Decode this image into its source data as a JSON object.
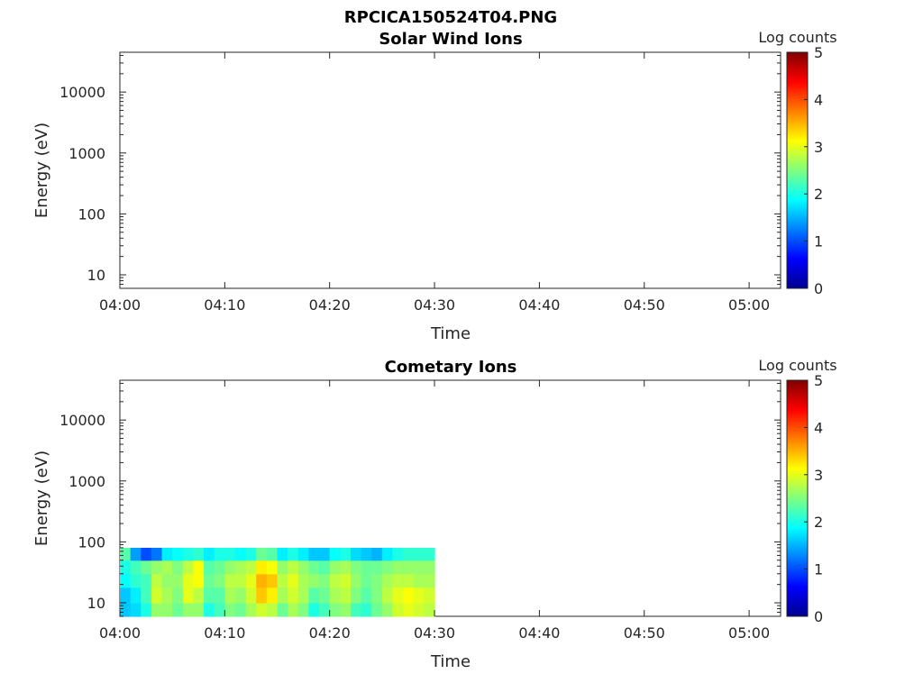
{
  "figure": {
    "title": "RPCICA150524T04.PNG"
  },
  "chart_data": [
    {
      "type": "heatmap",
      "title": "Solar Wind Ions",
      "xlabel": "Time",
      "ylabel": "Energy (eV)",
      "xticks": [
        "04:00",
        "04:10",
        "04:20",
        "04:30",
        "04:40",
        "04:50",
        "05:00"
      ],
      "xlim": [
        "04:00",
        "05:03"
      ],
      "yscale": "log",
      "yticks": [
        10,
        100,
        1000,
        10000
      ],
      "yticklabels": [
        "10",
        "100",
        "1000",
        "10000"
      ],
      "ylim": [
        6,
        45000
      ],
      "colorbar": {
        "label": "Log counts",
        "range": [
          0,
          5
        ],
        "ticks": [
          "0",
          "1",
          "2",
          "3",
          "4",
          "5"
        ],
        "colormap": "jet"
      },
      "data": []
    },
    {
      "type": "heatmap",
      "title": "Cometary Ions",
      "xlabel": "Time",
      "ylabel": "Energy (eV)",
      "xticks": [
        "04:00",
        "04:10",
        "04:20",
        "04:30",
        "04:40",
        "04:50",
        "05:00"
      ],
      "xlim": [
        "04:00",
        "05:03"
      ],
      "yscale": "log",
      "yticks": [
        10,
        100,
        1000,
        10000
      ],
      "yticklabels": [
        "10",
        "100",
        "1000",
        "10000"
      ],
      "ylim": [
        6,
        45000
      ],
      "colorbar": {
        "label": "Log counts",
        "range": [
          0,
          5
        ],
        "ticks": [
          "0",
          "1",
          "2",
          "3",
          "4",
          "5"
        ],
        "colormap": "jet"
      },
      "energy_bins": [
        6,
        10,
        18,
        30,
        50,
        80
      ],
      "time_bins": [
        "04:00",
        "04:01",
        "04:02",
        "04:03",
        "04:04",
        "04:05",
        "04:06",
        "04:07",
        "04:08",
        "04:09",
        "04:10",
        "04:11",
        "04:12",
        "04:13",
        "04:14",
        "04:15",
        "04:16",
        "04:17",
        "04:18",
        "04:19",
        "04:20",
        "04:21",
        "04:22",
        "04:23",
        "04:24",
        "04:25",
        "04:26",
        "04:27",
        "04:28",
        "04:29",
        "04:30"
      ],
      "values": [
        [
          1.6,
          1.6,
          1.9,
          2.0,
          2.3
        ],
        [
          1.7,
          1.8,
          2.1,
          2.2,
          1.4
        ],
        [
          2.0,
          2.2,
          2.2,
          2.4,
          1.0
        ],
        [
          2.6,
          2.9,
          2.8,
          2.6,
          1.2
        ],
        [
          2.6,
          2.7,
          2.6,
          2.7,
          1.8
        ],
        [
          2.4,
          2.5,
          2.6,
          2.5,
          1.9
        ],
        [
          2.6,
          3.0,
          3.0,
          2.8,
          2.0
        ],
        [
          2.6,
          2.8,
          3.1,
          3.1,
          2.1
        ],
        [
          2.0,
          2.3,
          2.4,
          2.3,
          1.8
        ],
        [
          2.2,
          2.3,
          2.5,
          2.4,
          2.0
        ],
        [
          2.5,
          2.7,
          2.8,
          2.6,
          2.0
        ],
        [
          2.4,
          2.6,
          2.8,
          2.7,
          1.9
        ],
        [
          2.7,
          2.9,
          3.0,
          2.8,
          2.0
        ],
        [
          2.9,
          3.4,
          3.5,
          3.2,
          2.4
        ],
        [
          2.8,
          3.2,
          3.4,
          3.1,
          2.3
        ],
        [
          2.4,
          2.7,
          2.8,
          2.6,
          1.8
        ],
        [
          2.7,
          2.9,
          3.0,
          2.8,
          2.0
        ],
        [
          2.5,
          2.7,
          2.7,
          2.6,
          1.8
        ],
        [
          2.0,
          2.3,
          2.6,
          2.4,
          1.6
        ],
        [
          2.2,
          2.4,
          2.5,
          2.3,
          1.6
        ],
        [
          2.5,
          2.7,
          2.8,
          2.6,
          1.9
        ],
        [
          2.6,
          2.8,
          2.9,
          2.7,
          2.0
        ],
        [
          2.2,
          2.5,
          2.6,
          2.5,
          1.7
        ],
        [
          2.1,
          2.3,
          2.4,
          2.4,
          1.6
        ],
        [
          2.4,
          2.5,
          2.5,
          2.4,
          1.5
        ],
        [
          2.6,
          2.8,
          2.7,
          2.5,
          1.8
        ],
        [
          2.9,
          3.0,
          2.8,
          2.6,
          2.0
        ],
        [
          3.0,
          3.1,
          2.8,
          2.6,
          2.1
        ],
        [
          2.9,
          3.0,
          2.7,
          2.6,
          2.1
        ],
        [
          2.8,
          2.9,
          2.7,
          2.6,
          2.1
        ]
      ]
    }
  ]
}
